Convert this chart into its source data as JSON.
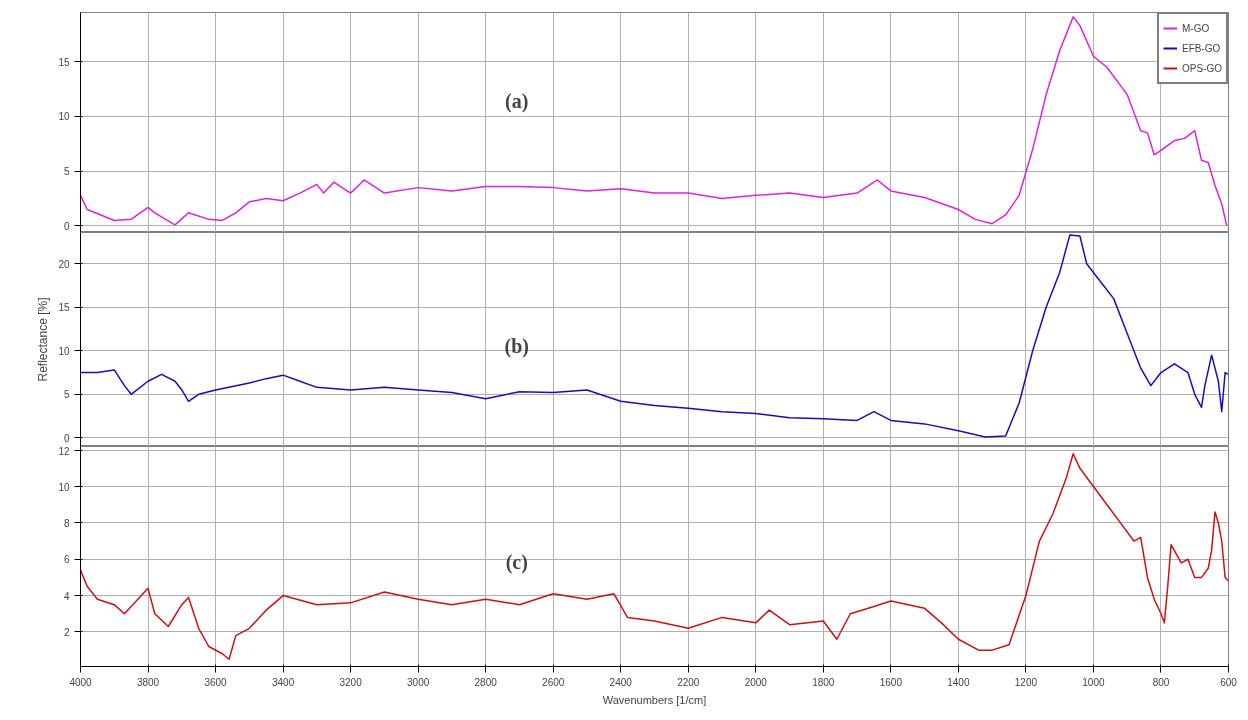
{
  "chart_data": [
    {
      "type": "line",
      "xlim": [
        4000,
        600
      ],
      "xticks": [
        4000,
        3800,
        3600,
        3400,
        3200,
        3000,
        2800,
        2600,
        2400,
        2200,
        2000,
        1800,
        1600,
        1400,
        1200,
        1000,
        800,
        600
      ],
      "ylim": [
        -0.6,
        19.5
      ],
      "yticks": [
        0,
        5,
        10,
        15
      ],
      "tick_labels": "y",
      "grid": true,
      "legend": "top right",
      "annotations": [
        "(a)"
      ],
      "x": [
        4000,
        3980,
        3900,
        3850,
        3800,
        3780,
        3720,
        3680,
        3620,
        3580,
        3540,
        3500,
        3450,
        3400,
        3350,
        3300,
        3280,
        3250,
        3200,
        3160,
        3100,
        3000,
        2900,
        2800,
        2700,
        2600,
        2500,
        2400,
        2300,
        2200,
        2100,
        2000,
        1900,
        1800,
        1700,
        1640,
        1600,
        1500,
        1400,
        1350,
        1300,
        1260,
        1220,
        1180,
        1140,
        1100,
        1060,
        1040,
        1000,
        960,
        900,
        860,
        840,
        820,
        800,
        760,
        730,
        700,
        680,
        660,
        640,
        620,
        605
      ],
      "series": [
        {
          "name": "M-GO",
          "color": "#e020e0",
          "values": [
            2.8,
            1.5,
            0.5,
            0.6,
            1.7,
            1.2,
            0.1,
            1.2,
            0.6,
            0.5,
            1.2,
            2.2,
            2.5,
            2.3,
            3.0,
            3.8,
            3.0,
            4.0,
            3.0,
            4.2,
            3.0,
            3.5,
            3.2,
            3.6,
            3.6,
            3.5,
            3.2,
            3.4,
            3.0,
            3.0,
            2.5,
            2.8,
            3.0,
            2.6,
            3.0,
            4.2,
            3.2,
            2.6,
            1.5,
            0.6,
            0.2,
            1.0,
            2.8,
            7,
            12,
            16,
            19.1,
            18.3,
            15.5,
            14.5,
            12,
            8.7,
            8.5,
            6.5,
            6.9,
            7.8,
            8,
            8.7,
            6,
            5.8,
            3.7,
            2,
            0
          ]
        }
      ]
    },
    {
      "type": "line",
      "xlim": [
        4000,
        600
      ],
      "xticks": [
        4000,
        3800,
        3600,
        3400,
        3200,
        3000,
        2800,
        2600,
        2400,
        2200,
        2000,
        1800,
        1600,
        1400,
        1200,
        1000,
        800,
        600
      ],
      "ylim": [
        -1,
        23.6
      ],
      "yticks": [
        0,
        5,
        10,
        15,
        20
      ],
      "tick_labels": "y",
      "grid": true,
      "ylabel": "Reflectance [%]",
      "annotations": [
        "(b)"
      ],
      "x": [
        4000,
        3950,
        3900,
        3870,
        3850,
        3800,
        3760,
        3720,
        3700,
        3680,
        3650,
        3600,
        3500,
        3450,
        3400,
        3350,
        3300,
        3200,
        3100,
        3000,
        2900,
        2800,
        2700,
        2600,
        2500,
        2400,
        2300,
        2200,
        2100,
        2000,
        1900,
        1800,
        1700,
        1650,
        1600,
        1500,
        1400,
        1320,
        1260,
        1220,
        1180,
        1140,
        1100,
        1070,
        1040,
        1020,
        980,
        940,
        900,
        860,
        830,
        800,
        760,
        720,
        700,
        680,
        670,
        650,
        630,
        620,
        610,
        600
      ],
      "series": [
        {
          "name": "EFB-GO",
          "color": "#1010c0",
          "values": [
            7.5,
            7.5,
            7.8,
            6,
            5,
            6.5,
            7.3,
            6.5,
            5.5,
            4.2,
            5,
            5.5,
            6.3,
            6.8,
            7.2,
            6.5,
            5.8,
            5.5,
            5.8,
            5.5,
            5.2,
            4.5,
            5.3,
            5.2,
            5.5,
            4.2,
            3.7,
            3.4,
            3.0,
            2.8,
            2.3,
            2.2,
            2.0,
            3.0,
            2.0,
            1.6,
            0.8,
            0.1,
            0.2,
            4,
            10,
            15,
            19,
            23.3,
            23.2,
            20,
            18,
            16,
            12,
            8,
            6,
            7.5,
            8.5,
            7.5,
            5,
            3.5,
            6,
            9.5,
            6.5,
            3,
            7.5,
            7.3
          ]
        }
      ]
    },
    {
      "type": "line",
      "xlim": [
        4000,
        600
      ],
      "xticks": [
        4000,
        3800,
        3600,
        3400,
        3200,
        3000,
        2800,
        2600,
        2400,
        2200,
        2000,
        1800,
        1600,
        1400,
        1200,
        1000,
        800,
        600
      ],
      "ylim": [
        0.1,
        12.2
      ],
      "yticks": [
        2,
        4,
        6,
        8,
        10,
        12
      ],
      "grid": true,
      "xlabel": "Wavenumbers [1/cm]",
      "annotations": [
        "(c)"
      ],
      "x": [
        4000,
        3980,
        3950,
        3900,
        3870,
        3830,
        3800,
        3780,
        3740,
        3700,
        3680,
        3650,
        3620,
        3580,
        3560,
        3540,
        3500,
        3450,
        3400,
        3300,
        3200,
        3100,
        3000,
        2900,
        2800,
        2700,
        2600,
        2500,
        2420,
        2380,
        2300,
        2200,
        2100,
        2000,
        1960,
        1900,
        1800,
        1760,
        1720,
        1650,
        1600,
        1500,
        1450,
        1400,
        1340,
        1300,
        1250,
        1200,
        1160,
        1120,
        1080,
        1060,
        1040,
        1000,
        960,
        920,
        880,
        860,
        840,
        820,
        800,
        790,
        780,
        770,
        740,
        720,
        700,
        680,
        660,
        650,
        640,
        630,
        620,
        610,
        600
      ],
      "series": [
        {
          "name": "OPS-GO",
          "color": "#d01010",
          "values": [
            5.4,
            4.5,
            3.8,
            3.5,
            3.0,
            3.8,
            4.4,
            3.0,
            2.3,
            3.5,
            3.9,
            2.2,
            1.2,
            0.8,
            0.5,
            1.8,
            2.2,
            3.2,
            4.0,
            3.5,
            3.6,
            4.2,
            3.8,
            3.5,
            3.8,
            3.5,
            4.1,
            3.8,
            4.1,
            2.8,
            2.6,
            2.2,
            2.8,
            2.5,
            3.2,
            2.4,
            2.6,
            1.6,
            3.0,
            3.4,
            3.7,
            3.3,
            2.5,
            1.6,
            1.0,
            1.0,
            1.3,
            4,
            7,
            8.5,
            10.5,
            11.8,
            11,
            10,
            9,
            8,
            7,
            7.2,
            5,
            3.8,
            3,
            2.5,
            4.5,
            6.8,
            5.8,
            6,
            5,
            5,
            5.5,
            6.5,
            8.6,
            8,
            7,
            5,
            4.8
          ]
        }
      ]
    }
  ]
}
